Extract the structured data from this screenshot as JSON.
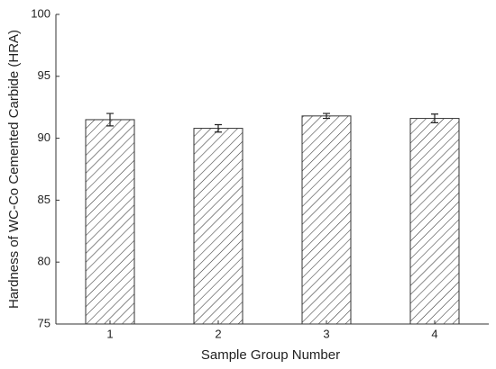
{
  "chart_data": {
    "type": "bar",
    "x_label": "Sample Group Number",
    "y_label": "Hardness of WC-Co Cemented Carbide (HRA)",
    "categories": [
      "1",
      "2",
      "3",
      "4"
    ],
    "values": [
      91.5,
      90.8,
      91.8,
      91.6
    ],
    "errors": [
      0.5,
      0.3,
      0.2,
      0.35
    ],
    "color": "#333333",
    "ylim": [
      75,
      100
    ],
    "yticks": [
      75,
      80,
      85,
      90,
      95,
      100
    ]
  }
}
